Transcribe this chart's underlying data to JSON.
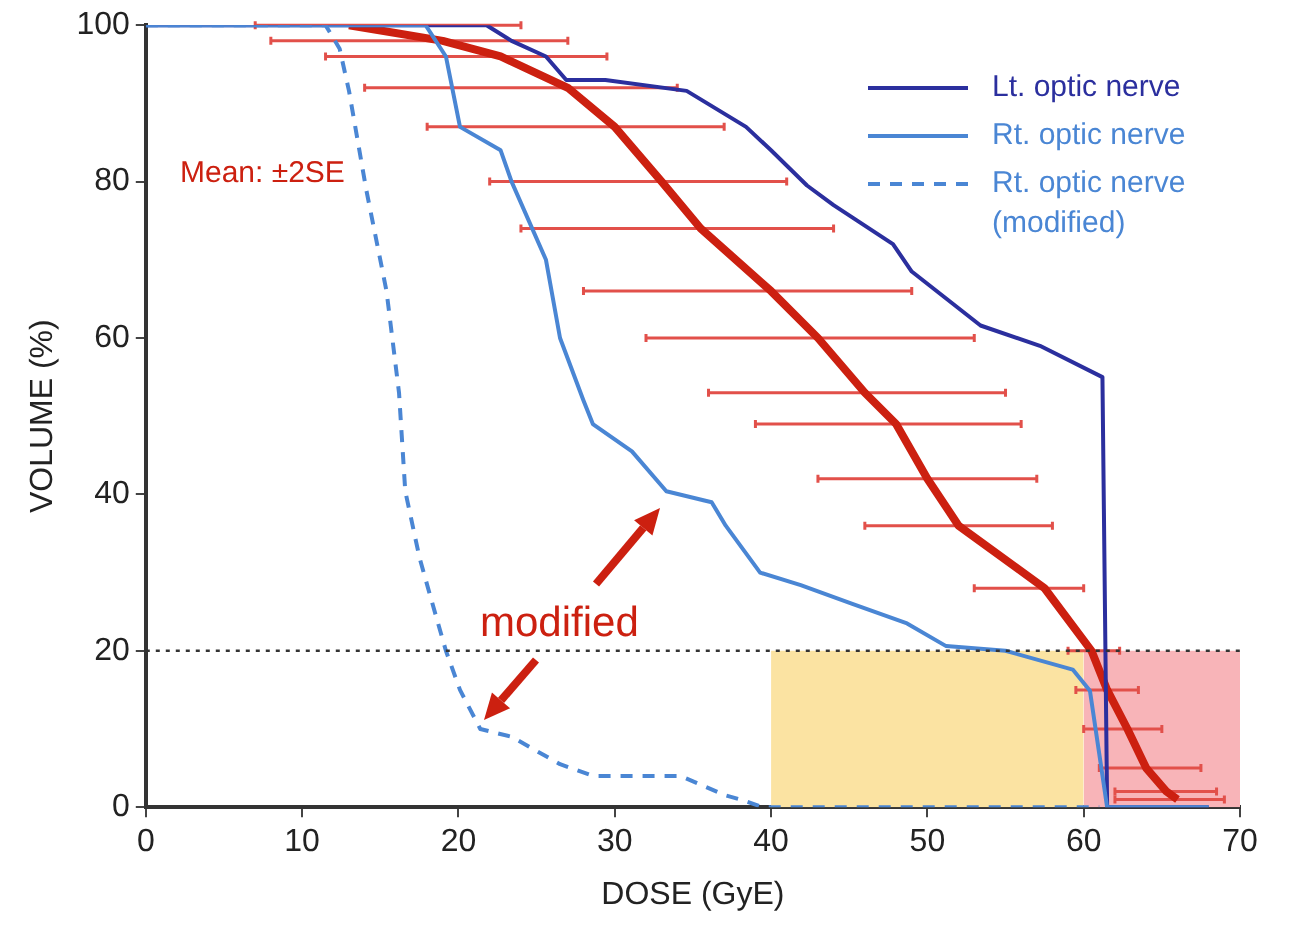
{
  "chart_data": {
    "type": "line",
    "xlabel": "DOSE (GyE)",
    "ylabel": "VOLUME (%)",
    "xlim": [
      0,
      70
    ],
    "xticks": [
      0,
      10,
      20,
      30,
      40,
      50,
      60,
      70
    ],
    "ylim": [
      0,
      100
    ],
    "yticks": [
      0,
      20,
      40,
      60,
      80,
      100
    ],
    "grid": false,
    "legend": "top right",
    "marker": "none",
    "annotations": [
      "Mean: ±2SE",
      "modified"
    ],
    "ref_lines": [
      {
        "axis": "y",
        "value": 20,
        "color": "#333333",
        "line_style": "dotted"
      }
    ],
    "series": [
      {
        "type": "area",
        "color": "#fbe3a2",
        "x": [
          40,
          60
        ],
        "values": [
          20,
          20
        ]
      },
      {
        "type": "area",
        "color": "#f8b4b8",
        "x": [
          60,
          70
        ],
        "values": [
          20,
          20
        ]
      },
      {
        "color": "#cc2010",
        "line_style": "solid",
        "x": [
          13,
          19,
          22.7,
          27,
          30,
          33,
          35.5,
          40,
          43,
          46,
          48,
          50,
          52,
          57.5,
          60.5,
          61.5,
          62.8,
          64,
          65.3,
          66
        ],
        "values": [
          100,
          98,
          96,
          92,
          87,
          80,
          74,
          66,
          60,
          53,
          49,
          42,
          36,
          28,
          20,
          15,
          10,
          5,
          2,
          1
        ],
        "xerrors": [
          [
            7,
            24
          ],
          [
            8,
            27
          ],
          [
            11.5,
            29.5
          ],
          [
            14,
            34
          ],
          [
            18,
            37
          ],
          [
            22,
            41
          ],
          [
            24,
            44
          ],
          [
            28,
            49
          ],
          [
            32,
            53
          ],
          [
            36,
            55
          ],
          [
            39,
            56
          ],
          [
            43,
            57
          ],
          [
            46,
            58
          ],
          [
            53,
            60
          ],
          [
            59,
            62.3
          ],
          [
            59.5,
            63.5
          ],
          [
            60,
            65
          ],
          [
            61,
            67.5
          ],
          [
            62,
            68.5
          ],
          [
            62,
            69
          ]
        ]
      },
      {
        "name": "Lt. optic nerve",
        "color": "#2b2f9e",
        "line_style": "solid",
        "x": [
          0,
          21.8,
          23.4,
          25.6,
          26.9,
          29.4,
          34.6,
          38.4,
          40,
          42.3,
          44,
          47.8,
          49,
          53.4,
          57.2,
          61.2,
          61.5,
          68
        ],
        "values": [
          100,
          100,
          98,
          96,
          93,
          93,
          91.6,
          87,
          84,
          79.5,
          77,
          72,
          68.5,
          61.6,
          59,
          55,
          0,
          0
        ]
      },
      {
        "name": "Rt. optic nerve",
        "color": "#4a86d4",
        "line_style": "solid",
        "x": [
          0,
          17.9,
          19.2,
          20.1,
          22.7,
          23.4,
          25.6,
          26.5,
          28,
          28.6,
          31.1,
          33.3,
          36.2,
          37.1,
          39.3,
          41.9,
          45.2,
          48.7,
          51.2,
          55,
          59.3,
          60.4,
          61.5,
          68
        ],
        "values": [
          100,
          100,
          96,
          87,
          84,
          80,
          70,
          60,
          52,
          49,
          45.5,
          40.4,
          39,
          36,
          30,
          28.4,
          26,
          23.5,
          20.6,
          20,
          17.6,
          14.9,
          0,
          0
        ]
      },
      {
        "name": "Rt. optic nerve (modified)",
        "color": "#4a86d4",
        "line_style": "dashed",
        "x": [
          0,
          11.5,
          12.4,
          13,
          14.1,
          15.4,
          16.2,
          16.6,
          17.5,
          18.2,
          19.2,
          20.1,
          21.4,
          23.4,
          26.5,
          28.6,
          34.2,
          37.1,
          38,
          39.5,
          61
        ],
        "values": [
          100,
          100,
          97,
          91.6,
          79,
          66,
          53,
          40.4,
          32,
          27,
          20,
          15,
          10,
          9,
          5.5,
          4,
          4,
          1.5,
          1,
          0,
          0
        ]
      }
    ]
  }
}
